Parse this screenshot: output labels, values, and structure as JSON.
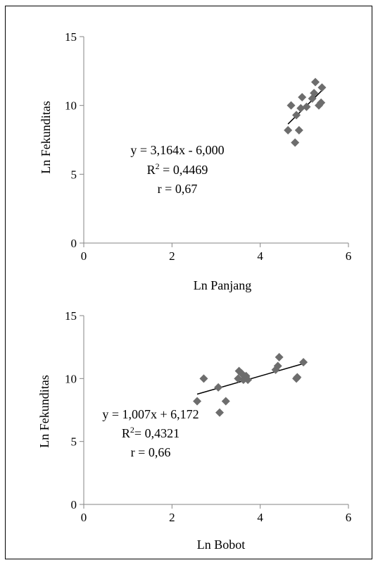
{
  "chart_data": [
    {
      "type": "scatter",
      "xlabel": "Ln Panjang",
      "ylabel": "Ln Fekunditas",
      "xlim": [
        0,
        6
      ],
      "ylim": [
        0,
        15
      ],
      "xticks": [
        "0",
        "2",
        "4",
        "6"
      ],
      "yticks": [
        "0",
        "5",
        "10",
        "15"
      ],
      "grid": false,
      "marker": "diamond",
      "marker_color": "#6d6d6d",
      "points": [
        {
          "x": 4.63,
          "y": 8.2
        },
        {
          "x": 4.7,
          "y": 10.0
        },
        {
          "x": 4.79,
          "y": 7.3
        },
        {
          "x": 4.82,
          "y": 9.3
        },
        {
          "x": 4.88,
          "y": 8.2
        },
        {
          "x": 4.92,
          "y": 9.8
        },
        {
          "x": 4.95,
          "y": 10.6
        },
        {
          "x": 5.05,
          "y": 9.9
        },
        {
          "x": 5.18,
          "y": 10.5
        },
        {
          "x": 5.22,
          "y": 10.9
        },
        {
          "x": 5.25,
          "y": 11.7
        },
        {
          "x": 5.33,
          "y": 10.0
        },
        {
          "x": 5.38,
          "y": 10.2
        },
        {
          "x": 5.4,
          "y": 11.3
        }
      ],
      "trendline": {
        "slope": 3.164,
        "intercept": -6.0,
        "x_range": [
          4.63,
          5.4
        ]
      },
      "annotations": {
        "equation": "y = 3,164x - 6,000",
        "r2_prefix": "R",
        "r2_sup": "2",
        "r2_suffix": " = 0,4469",
        "r": "r = 0,67"
      }
    },
    {
      "type": "scatter",
      "xlabel": "Ln Bobot",
      "ylabel": "Ln Fekunditas",
      "xlim": [
        0,
        6
      ],
      "ylim": [
        0,
        15
      ],
      "xticks": [
        "0",
        "2",
        "4",
        "6"
      ],
      "yticks": [
        "0",
        "5",
        "10",
        "15"
      ],
      "grid": false,
      "marker": "diamond",
      "marker_color": "#6d6d6d",
      "points": [
        {
          "x": 2.57,
          "y": 8.2
        },
        {
          "x": 2.72,
          "y": 10.0
        },
        {
          "x": 3.05,
          "y": 9.3
        },
        {
          "x": 3.08,
          "y": 7.3
        },
        {
          "x": 3.22,
          "y": 8.2
        },
        {
          "x": 3.5,
          "y": 10.0
        },
        {
          "x": 3.52,
          "y": 10.6
        },
        {
          "x": 3.58,
          "y": 10.4
        },
        {
          "x": 3.62,
          "y": 9.9
        },
        {
          "x": 3.68,
          "y": 10.2
        },
        {
          "x": 3.72,
          "y": 9.9
        },
        {
          "x": 4.35,
          "y": 10.7
        },
        {
          "x": 4.4,
          "y": 11.0
        },
        {
          "x": 4.43,
          "y": 11.7
        },
        {
          "x": 4.82,
          "y": 10.0
        },
        {
          "x": 4.84,
          "y": 10.1
        },
        {
          "x": 4.98,
          "y": 11.3
        }
      ],
      "trendline": {
        "slope": 1.007,
        "intercept": 6.172,
        "x_range": [
          2.57,
          4.98
        ]
      },
      "annotations": {
        "equation": "y = 1,007x + 6,172",
        "r2_prefix": "R",
        "r2_sup": "2",
        "r2_suffix": "= 0,4321",
        "r": "r = 0,66"
      }
    }
  ]
}
